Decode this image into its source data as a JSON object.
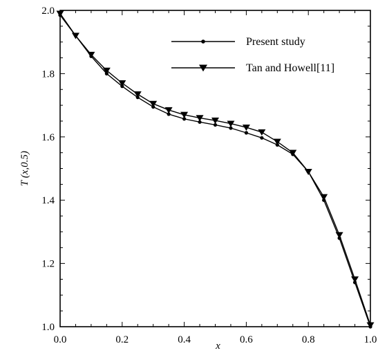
{
  "chart_data": {
    "type": "line",
    "xlabel": "x",
    "ylabel": "T (x,0.5)",
    "xlim": [
      0.0,
      1.0
    ],
    "ylim": [
      1.0,
      2.0
    ],
    "xticks": [
      "0.0",
      "0.2",
      "0.4",
      "0.6",
      "0.8",
      "1.0"
    ],
    "yticks": [
      "1.0",
      "1.2",
      "1.4",
      "1.6",
      "1.8",
      "2.0"
    ],
    "grid": false,
    "legend_position": "top-right",
    "series": [
      {
        "name": "Present study",
        "marker": "dot",
        "x": [
          0.0,
          0.05,
          0.1,
          0.15,
          0.2,
          0.25,
          0.3,
          0.35,
          0.4,
          0.45,
          0.5,
          0.55,
          0.6,
          0.65,
          0.7,
          0.75,
          0.8,
          0.85,
          0.9,
          0.95,
          1.0
        ],
        "y": [
          1.985,
          1.92,
          1.855,
          1.8,
          1.76,
          1.725,
          1.695,
          1.672,
          1.657,
          1.647,
          1.638,
          1.628,
          1.613,
          1.597,
          1.575,
          1.545,
          1.49,
          1.4,
          1.28,
          1.14,
          1.0
        ]
      },
      {
        "name": "Tan and Howell[11]",
        "marker": "triangle-down",
        "x": [
          0.0,
          0.05,
          0.1,
          0.15,
          0.2,
          0.25,
          0.3,
          0.35,
          0.4,
          0.45,
          0.5,
          0.55,
          0.6,
          0.65,
          0.7,
          0.75,
          0.8,
          0.85,
          0.9,
          0.95,
          1.0
        ],
        "y": [
          1.99,
          1.92,
          1.86,
          1.81,
          1.77,
          1.735,
          1.705,
          1.685,
          1.67,
          1.66,
          1.652,
          1.642,
          1.63,
          1.615,
          1.585,
          1.55,
          1.49,
          1.41,
          1.29,
          1.15,
          1.005
        ]
      }
    ]
  }
}
